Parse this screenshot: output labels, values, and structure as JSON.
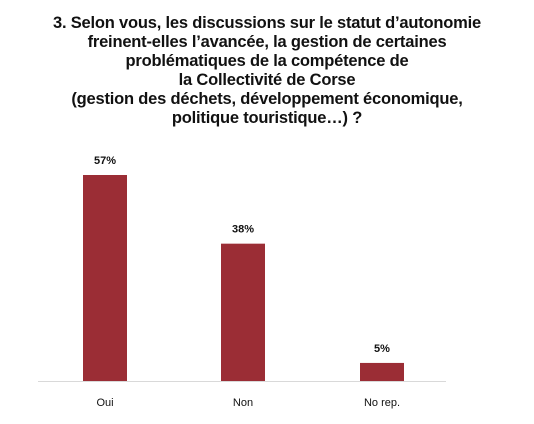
{
  "chart_data": {
    "type": "bar",
    "title_lines": [
      "3. Selon vous, les discussions sur le statut d’autonomie",
      "freinent-elles l’avancée, la gestion de certaines",
      "problématiques de la compétence de",
      "la Collectivité de Corse",
      "(gestion des déchets, développement économique,",
      "politique touristique…) ?"
    ],
    "categories": [
      "Oui",
      "Non",
      "No rep."
    ],
    "values": [
      57,
      38,
      5
    ],
    "data_labels": [
      "57%",
      "38%",
      "5%"
    ],
    "ylim": [
      0,
      57
    ],
    "bar_color": "#9b2d35",
    "axis_color": "#d9d9d9",
    "grid": false,
    "legend": false
  }
}
